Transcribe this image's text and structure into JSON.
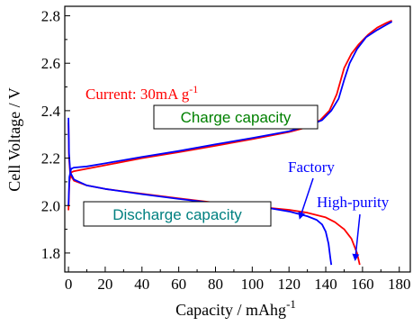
{
  "chart_data": {
    "type": "line",
    "title": "",
    "xlabel": "Capacity / mAhg",
    "xlabel_sup": "-1",
    "ylabel": "Cell Voltage / V",
    "xlim": [
      -2,
      186
    ],
    "ylim": [
      1.72,
      2.84
    ],
    "xticks": [
      0,
      20,
      40,
      60,
      80,
      100,
      120,
      140,
      160,
      180
    ],
    "yticks": [
      1.8,
      2.0,
      2.2,
      2.4,
      2.6,
      2.8
    ],
    "grid": false,
    "legend": "none",
    "series": [
      {
        "name": "",
        "group": "high-purity",
        "color": "#ff0000",
        "segments": [
          {
            "label": "discharge",
            "points": [
              [
                0,
                2.35
              ],
              [
                0.3,
                2.2
              ],
              [
                1,
                2.13
              ],
              [
                3,
                2.105
              ],
              [
                10,
                2.085
              ],
              [
                20,
                2.07
              ],
              [
                40,
                2.05
              ],
              [
                60,
                2.03
              ],
              [
                80,
                2.012
              ],
              [
                100,
                1.997
              ],
              [
                120,
                1.982
              ],
              [
                130,
                1.97
              ],
              [
                140,
                1.95
              ],
              [
                145,
                1.93
              ],
              [
                150,
                1.9
              ],
              [
                154,
                1.86
              ],
              [
                157,
                1.8
              ],
              [
                158.5,
                1.75
              ]
            ]
          },
          {
            "label": "charge",
            "points": [
              [
                0,
                1.98
              ],
              [
                0.5,
                2.1
              ],
              [
                1.5,
                2.14
              ],
              [
                3,
                2.145
              ],
              [
                10,
                2.155
              ],
              [
                20,
                2.17
              ],
              [
                40,
                2.2
              ],
              [
                60,
                2.225
              ],
              [
                80,
                2.252
              ],
              [
                100,
                2.28
              ],
              [
                120,
                2.31
              ],
              [
                130,
                2.33
              ],
              [
                137,
                2.36
              ],
              [
                142,
                2.4
              ],
              [
                146,
                2.47
              ],
              [
                150,
                2.58
              ],
              [
                154,
                2.64
              ],
              [
                158,
                2.68
              ],
              [
                163,
                2.72
              ],
              [
                168,
                2.75
              ],
              [
                173,
                2.77
              ],
              [
                176,
                2.78
              ]
            ]
          }
        ]
      },
      {
        "name": "",
        "group": "factory",
        "color": "#0000ff",
        "segments": [
          {
            "label": "discharge",
            "points": [
              [
                0,
                2.37
              ],
              [
                0.3,
                2.22
              ],
              [
                1,
                2.14
              ],
              [
                3,
                2.11
              ],
              [
                10,
                2.085
              ],
              [
                20,
                2.07
              ],
              [
                40,
                2.048
              ],
              [
                60,
                2.028
              ],
              [
                80,
                2.01
              ],
              [
                100,
                1.995
              ],
              [
                110,
                1.988
              ],
              [
                120,
                1.975
              ],
              [
                130,
                1.955
              ],
              [
                135,
                1.94
              ],
              [
                138,
                1.92
              ],
              [
                140,
                1.89
              ],
              [
                141.5,
                1.84
              ],
              [
                142.5,
                1.78
              ],
              [
                143,
                1.75
              ]
            ]
          },
          {
            "label": "charge",
            "points": [
              [
                0,
                2.0
              ],
              [
                0.5,
                2.12
              ],
              [
                1.5,
                2.155
              ],
              [
                3,
                2.16
              ],
              [
                10,
                2.165
              ],
              [
                20,
                2.178
              ],
              [
                40,
                2.205
              ],
              [
                60,
                2.23
              ],
              [
                80,
                2.258
              ],
              [
                100,
                2.285
              ],
              [
                120,
                2.313
              ],
              [
                130,
                2.335
              ],
              [
                138,
                2.36
              ],
              [
                143,
                2.4
              ],
              [
                147,
                2.45
              ],
              [
                150,
                2.53
              ],
              [
                153,
                2.6
              ],
              [
                157,
                2.66
              ],
              [
                162,
                2.71
              ],
              [
                168,
                2.74
              ],
              [
                173,
                2.762
              ],
              [
                176,
                2.775
              ]
            ]
          }
        ]
      }
    ],
    "annotations": {
      "current": {
        "text": "Current: 30mA g",
        "sup": "-1",
        "color": "#ff0000"
      },
      "charge_box": {
        "text": "Charge capacity",
        "color": "#008000"
      },
      "discharge_box": {
        "text": "Discharge capacity",
        "color": "#008080"
      },
      "factory": {
        "text": "Factory",
        "color": "#0000ff"
      },
      "high_purity": {
        "text": "High-purity",
        "color": "#0000ff"
      }
    }
  }
}
